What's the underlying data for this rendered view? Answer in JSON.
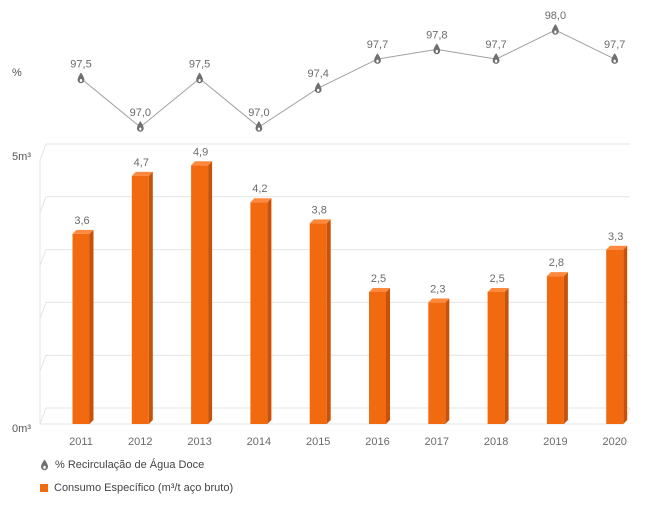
{
  "chart_data": {
    "type": "bar",
    "categories": [
      "2011",
      "2012",
      "2013",
      "2014",
      "2015",
      "2016",
      "2017",
      "2018",
      "2019",
      "2020"
    ],
    "series": [
      {
        "name": "Consumo Específico (m³/t aço bruto)",
        "chart_type": "bar",
        "values": [
          3.6,
          4.7,
          4.9,
          4.2,
          3.8,
          2.5,
          2.3,
          2.5,
          2.8,
          3.3
        ],
        "labels": [
          "3,6",
          "4,7",
          "4,9",
          "4,2",
          "3,8",
          "2,5",
          "2,3",
          "2,5",
          "2,8",
          "3,3"
        ],
        "color": "#f26a10"
      },
      {
        "name": "% Recirculação de Água Doce",
        "chart_type": "line",
        "values": [
          97.5,
          97.0,
          97.5,
          97.0,
          97.4,
          97.7,
          97.8,
          97.7,
          98.0,
          97.7
        ],
        "labels": [
          "97,5",
          "97,0",
          "97,5",
          "97,0",
          "97,4",
          "97,7",
          "97,8",
          "97,7",
          "98,0",
          "97,7"
        ],
        "color": "#8a8a8a"
      }
    ],
    "y_bar_ticks": [
      "5m³",
      "0m³"
    ],
    "y_bar_range": [
      0,
      5
    ],
    "y_line_label": "%",
    "grid": true,
    "legend_position": "bottom-left"
  },
  "legend": {
    "line_label": "% Recirculação de Água Doce",
    "bar_label": "Consumo Específico (m³/t aço bruto)"
  },
  "colors": {
    "bar_front": "#f26a10",
    "bar_side": "#c9520a",
    "bar_top": "#ff8a3d",
    "line": "#a0a0a0",
    "marker": "#707070",
    "grid": "#e4e4e4"
  }
}
